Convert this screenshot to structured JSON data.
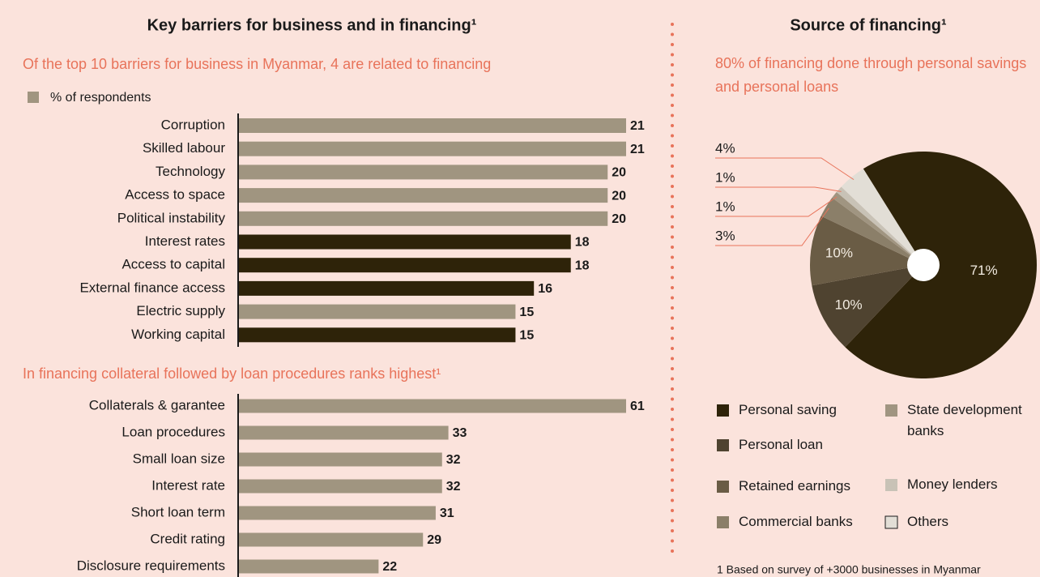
{
  "chart_data": [
    {
      "type": "bar",
      "orientation": "horizontal",
      "title": "Key barriers for business and in financing¹",
      "subtitle": "Of the top 10 barriers for business in Myanmar, 4 are related to financing",
      "legend": "% of respondents",
      "color": "#a09580",
      "categories": [
        "Corruption",
        "Skilled labour",
        "Technology",
        "Access to space",
        "Political instability",
        "Interest rates",
        "Access to capital",
        "External finance access",
        "Electric supply",
        "Working capital"
      ],
      "values": [
        21,
        21,
        20,
        20,
        20,
        18,
        18,
        16,
        15,
        15
      ],
      "colors": [
        "#a09580",
        "#a09580",
        "#a09580",
        "#a09580",
        "#a09580",
        "#2e2309",
        "#2e2309",
        "#2e2309",
        "#a09580",
        "#2e2309"
      ]
    },
    {
      "type": "bar",
      "orientation": "horizontal",
      "subtitle": "In financing collateral followed by loan procedures ranks highest¹",
      "color": "#a09580",
      "categories": [
        "Collaterals & garantee",
        "Loan procedures",
        "Small loan size",
        "Interest rate",
        "Short loan term",
        "Credit rating",
        "Disclosure requirements"
      ],
      "values": [
        61,
        33,
        32,
        32,
        31,
        29,
        22
      ]
    },
    {
      "type": "pie",
      "title": "Source of financing¹",
      "subtitle": "80% of financing done through personal savings and personal loans",
      "categories": [
        "Personal saving",
        "Personal loan",
        "Retained earnings",
        "Commercial banks",
        "State development banks",
        "Money lenders",
        "Others"
      ],
      "values": [
        71,
        10,
        10,
        3,
        1,
        1,
        4
      ],
      "value_labels": [
        "71%",
        "10%",
        "10%",
        "3%",
        "1%",
        "1%",
        "4%"
      ],
      "colors": [
        "#2e2309",
        "#4f4330",
        "#6a5c45",
        "#8b7f69",
        "#a09581",
        "#c8c2b6",
        "#e2ded6"
      ],
      "footnote": "1 Based on survey of +3000 businesses in Myanmar"
    }
  ]
}
